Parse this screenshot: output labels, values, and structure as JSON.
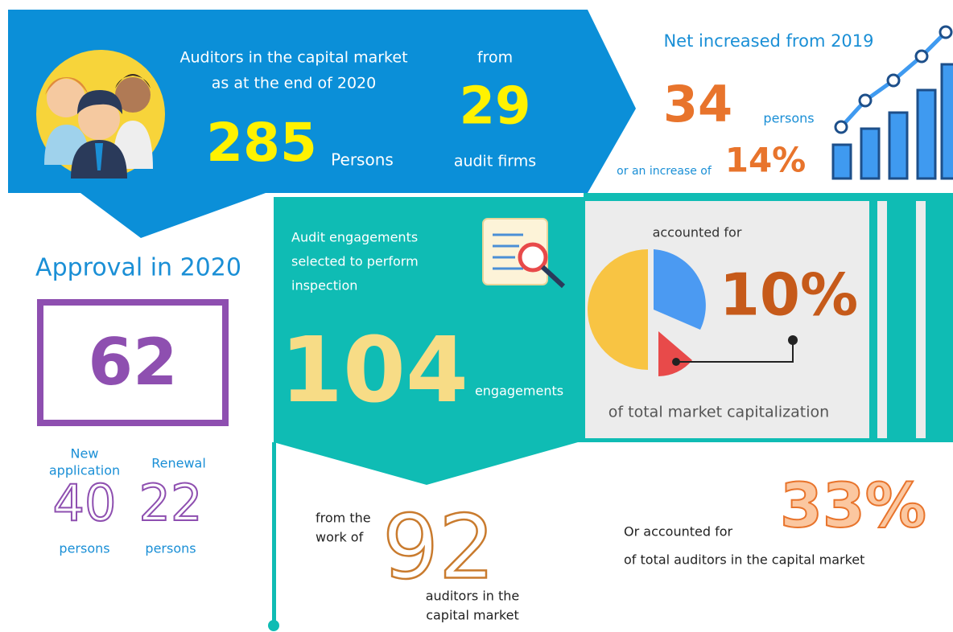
{
  "auditors": {
    "title_line1": "Auditors in the capital market",
    "title_line2": "as at the end of 2020",
    "count": "285",
    "count_unit": "Persons",
    "from": "from",
    "firms": "29",
    "firms_unit": "audit firms"
  },
  "net_increase": {
    "title": "Net increased from 2019",
    "count": "34",
    "count_unit": "persons",
    "percent_prefix": "or an increase of",
    "percent": "14%"
  },
  "approval": {
    "title": "Approval in 2020",
    "total": "62",
    "new_label_line1": "New",
    "new_label_line2": "application",
    "new_count": "40",
    "new_unit": "persons",
    "renewal_label": "Renewal",
    "renewal_count": "22",
    "renewal_unit": "persons"
  },
  "engagements": {
    "title_line1": "Audit engagements",
    "title_line2": "selected to perform",
    "title_line3": "inspection",
    "count": "104",
    "count_unit": "engagements"
  },
  "capitalization": {
    "prefix": "accounted for",
    "percent": "10%",
    "suffix": "of total market capitalization"
  },
  "work": {
    "prefix_line1": "from the",
    "prefix_line2": "work of",
    "count": "92",
    "suffix_line1": "auditors in the",
    "suffix_line2": "capital market"
  },
  "share": {
    "prefix": "Or accounted for",
    "percent": "33%",
    "suffix": "of total auditors in the capital market"
  }
}
